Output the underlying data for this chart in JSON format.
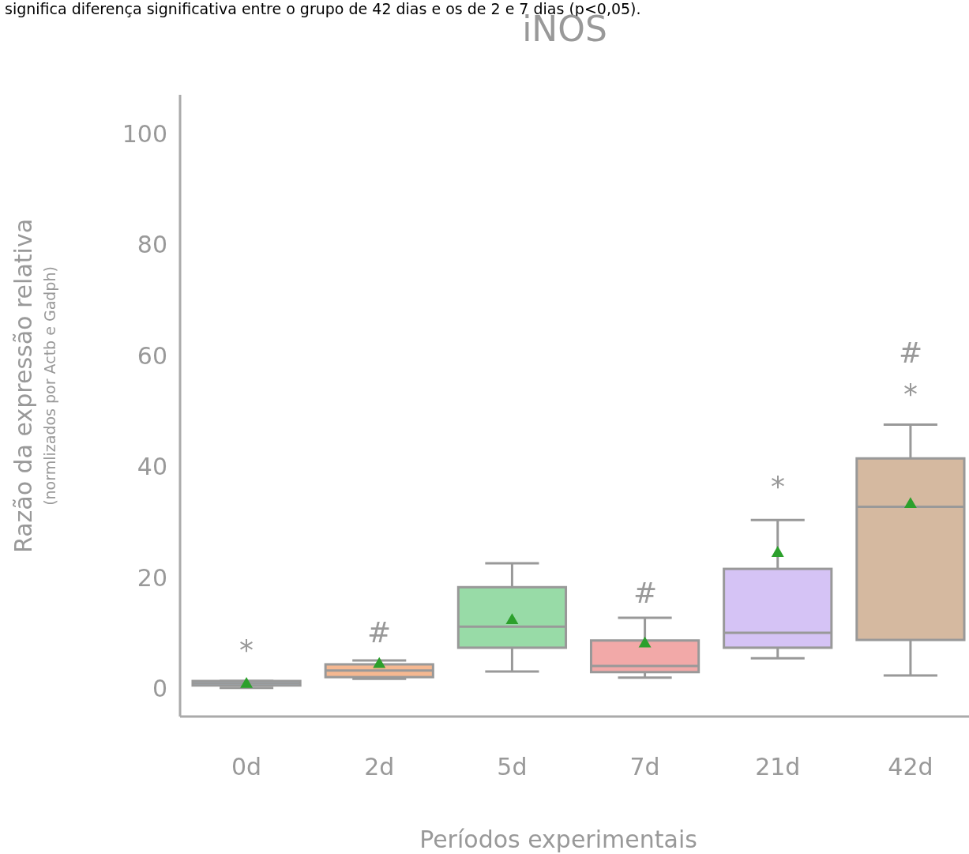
{
  "chart_data": {
    "type": "box",
    "title": "iNOS",
    "xlabel": "Períodos experimentais",
    "ylabel": "Razão da expressão relativa",
    "subtitle": "(normlizados por Actb e Gadph)",
    "categories": [
      "0d",
      "2d",
      "5d",
      "7d",
      "21d",
      "42d"
    ],
    "colors": [
      "#a1c9f4",
      "#f5b891",
      "#98dba7",
      "#f2a9a8",
      "#d5c3f5",
      "#d5b9a0"
    ],
    "boxes": [
      {
        "low": 0.15,
        "q1": 0.6,
        "median": 1,
        "q3": 1.4,
        "high": 1.4,
        "mean": 1.1
      },
      {
        "low": 1.8,
        "q1": 2.1,
        "median": 3.3,
        "q3": 4.4,
        "high": 5.1,
        "mean": 4.7
      },
      {
        "low": 3.1,
        "q1": 7.4,
        "median": 11.2,
        "q3": 18.3,
        "high": 22.6,
        "mean": 12.6
      },
      {
        "low": 2.0,
        "q1": 3.0,
        "median": 4.1,
        "q3": 8.7,
        "high": 12.8,
        "mean": 8.4
      },
      {
        "low": 5.5,
        "q1": 7.4,
        "median": 10.1,
        "q3": 21.6,
        "high": 30.4,
        "mean": 24.7
      },
      {
        "low": 2.4,
        "q1": 8.8,
        "median": 32.8,
        "q3": 41.5,
        "high": 47.6,
        "mean": 33.5
      }
    ],
    "marker": "triangle",
    "ylim": [
      -5,
      107
    ],
    "yticks": [
      0,
      20,
      40,
      60,
      80,
      100
    ],
    "grid": false,
    "annotations": [
      "significa diferença significativa entre o grupo de 42 dias e os de 2 e 7 dias (p<0,05).",
      "*",
      "#",
      "#",
      "*",
      "*",
      "#"
    ]
  }
}
